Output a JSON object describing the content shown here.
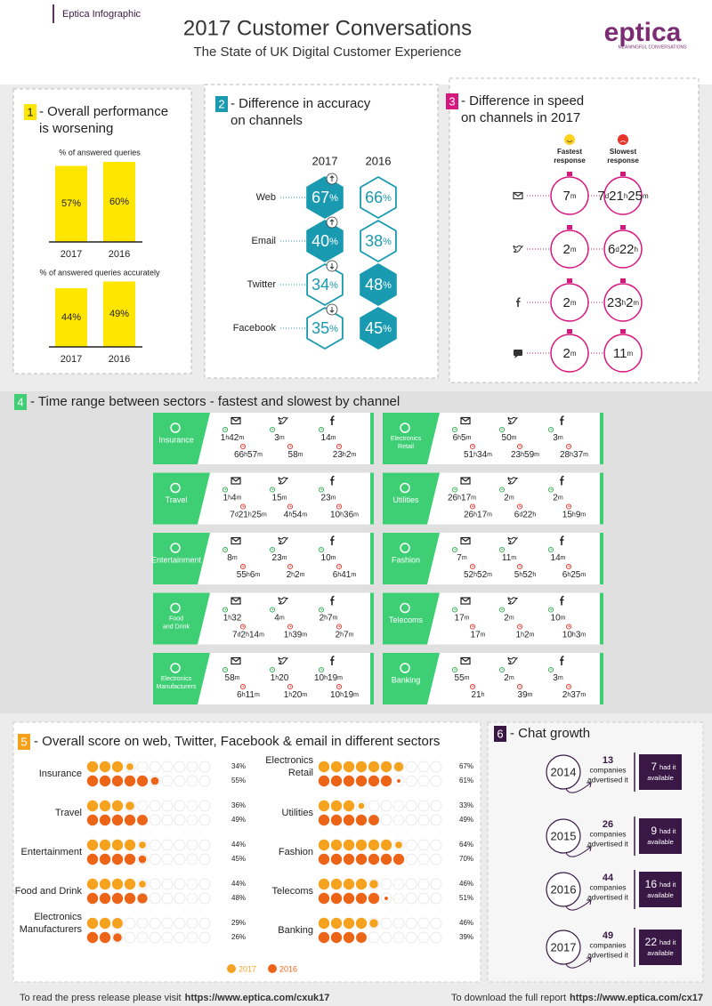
{
  "header": {
    "label": "Eptica Infographic",
    "title": "2017 Customer Conversations",
    "subtitle": "The State of UK Digital Customer Experience",
    "logo": "eptica",
    "logo_tagline": "MEANINGFUL CONVERSATIONS"
  },
  "section1": {
    "number": "1",
    "title_lines": [
      "- Overall performance",
      "is worsening"
    ],
    "charts": [
      {
        "label": "% of answered queries",
        "years": [
          "2017",
          "2016"
        ],
        "values": [
          57,
          60
        ],
        "value_labels": [
          "57%",
          "60%"
        ]
      },
      {
        "label": "% of answered queries accurately",
        "years": [
          "2017",
          "2016"
        ],
        "values": [
          44,
          49
        ],
        "value_labels": [
          "44%",
          "49%"
        ]
      }
    ]
  },
  "section2": {
    "number": "2",
    "title_lines": [
      "- Difference in accuracy",
      "on channels"
    ],
    "years": [
      "2017",
      "2016"
    ],
    "unit": "%",
    "channels": [
      "Web",
      "Email",
      "Twitter",
      "Facebook"
    ],
    "values_2017": [
      67,
      40,
      34,
      35
    ],
    "values_2016": [
      66,
      38,
      48,
      45
    ]
  },
  "section3": {
    "number": "3",
    "title_lines": [
      "- Difference in speed",
      "on channels in 2017"
    ],
    "fastest_lines": [
      "Fastest",
      "response"
    ],
    "slowest_lines": [
      "Slowest",
      "response"
    ],
    "fastest": [
      "7m",
      "2m",
      "2m",
      "2m"
    ],
    "slowest": [
      "7d21h25m",
      "6d22h",
      "23h2m",
      "11m"
    ]
  },
  "section4": {
    "number": "4",
    "title": "- Time range between sectors - fastest and slowest by channel",
    "sectors": [
      {
        "name_lines": [
          "Insurance"
        ],
        "fastest": [
          "1h42m",
          "3m",
          "14m"
        ],
        "slowest": [
          "66h57m",
          "58m",
          "23h2m"
        ]
      },
      {
        "name_lines": [
          "Electronics",
          "Retail"
        ],
        "fastest": [
          "6h5m",
          "50m",
          "3m"
        ],
        "slowest": [
          "51h34m",
          "23h59m",
          "28h37m"
        ]
      },
      {
        "name_lines": [
          "Travel"
        ],
        "fastest": [
          "1h4m",
          "15m",
          "23m"
        ],
        "slowest": [
          "7d21h25m",
          "4h54m",
          "10h36m"
        ]
      },
      {
        "name_lines": [
          "Utilities"
        ],
        "fastest": [
          "26h17m",
          "2m",
          "2m"
        ],
        "slowest": [
          "26h17m",
          "6d22h",
          "15h9m"
        ]
      },
      {
        "name_lines": [
          "Entertainment"
        ],
        "fastest": [
          "8m",
          "23m",
          "10m"
        ],
        "slowest": [
          "55h6m",
          "2h2m",
          "6h41m"
        ]
      },
      {
        "name_lines": [
          "Fashion"
        ],
        "fastest": [
          "7m",
          "11m",
          "14m"
        ],
        "slowest": [
          "52h52m",
          "5h52h",
          "6h25m"
        ]
      },
      {
        "name_lines": [
          "Food",
          "and Drink"
        ],
        "fastest": [
          "1h32",
          "4m",
          "2h7m"
        ],
        "slowest": [
          "7d2h14m",
          "1h39m",
          "2h7m"
        ]
      },
      {
        "name_lines": [
          "Telecoms"
        ],
        "fastest": [
          "17m",
          "2m",
          "10m"
        ],
        "slowest": [
          "17m",
          "1h2m",
          "10h3m"
        ]
      },
      {
        "name_lines": [
          "Electronics",
          "Manufacturers"
        ],
        "fastest": [
          "58m",
          "1h20",
          "10h19m"
        ],
        "slowest": [
          "6h11m",
          "1h20m",
          "10h19m"
        ]
      },
      {
        "name_lines": [
          "Banking"
        ],
        "fastest": [
          "55m",
          "2m",
          "3m"
        ],
        "slowest": [
          "21h",
          "39m",
          "2h37m"
        ]
      }
    ]
  },
  "section5": {
    "number": "5",
    "title": "- Overall score on web, Twitter, Facebook & email in different sectors",
    "legend": [
      "2017",
      "2016"
    ],
    "colors": [
      "#f5a21f",
      "#ec6418"
    ],
    "sectors": [
      {
        "name_lines": [
          "Insurance"
        ],
        "values": [
          34,
          55
        ],
        "value_labels": [
          "34%",
          "55%"
        ]
      },
      {
        "name_lines": [
          "Travel"
        ],
        "values": [
          36,
          49
        ],
        "value_labels": [
          "36%",
          "49%"
        ]
      },
      {
        "name_lines": [
          "Entertainment"
        ],
        "values": [
          44,
          45
        ],
        "value_labels": [
          "44%",
          "45%"
        ]
      },
      {
        "name_lines": [
          "Food and Drink"
        ],
        "values": [
          44,
          48
        ],
        "value_labels": [
          "44%",
          "48%"
        ]
      },
      {
        "name_lines": [
          "Electronics",
          "Manufacturers"
        ],
        "values": [
          29,
          26
        ],
        "value_labels": [
          "29%",
          "26%"
        ]
      },
      {
        "name_lines": [
          "Electronics",
          "Retail"
        ],
        "values": [
          67,
          61
        ],
        "value_labels": [
          "67%",
          "61%"
        ]
      },
      {
        "name_lines": [
          "Utilities"
        ],
        "values": [
          33,
          49
        ],
        "value_labels": [
          "33%",
          "49%"
        ]
      },
      {
        "name_lines": [
          "Fashion"
        ],
        "values": [
          64,
          70
        ],
        "value_labels": [
          "64%",
          "70%"
        ]
      },
      {
        "name_lines": [
          "Telecoms"
        ],
        "values": [
          46,
          51
        ],
        "value_labels": [
          "46%",
          "51%"
        ]
      },
      {
        "name_lines": [
          "Banking"
        ],
        "values": [
          46,
          39
        ],
        "value_labels": [
          "46%",
          "39%"
        ]
      }
    ]
  },
  "section6": {
    "number": "6",
    "title": "- Chat growth",
    "advertised_lines": [
      "companies",
      "advertised it"
    ],
    "available_lines": [
      "had it",
      "available"
    ],
    "rows": [
      {
        "year": "2014",
        "advertised": 13,
        "available": 7
      },
      {
        "year": "2015",
        "advertised": 26,
        "available": 9
      },
      {
        "year": "2016",
        "advertised": 44,
        "available": 16
      },
      {
        "year": "2017",
        "advertised": 49,
        "available": 22
      }
    ]
  },
  "footer": {
    "left_text": "To read the press release please visit",
    "left_url": "https://www.eptica.com/cxuk17",
    "right_text": "To download the full report",
    "right_url": "https://www.eptica.com/cx17"
  }
}
